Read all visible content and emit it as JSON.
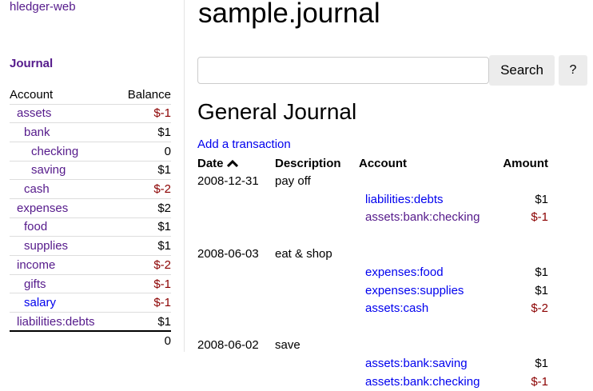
{
  "sidebar": {
    "brand": "hledger-web",
    "journal_link": "Journal",
    "headers": {
      "account": "Account",
      "balance": "Balance"
    },
    "accounts": [
      {
        "name": "assets",
        "balance": "$-1"
      },
      {
        "name": "bank",
        "balance": "$1"
      },
      {
        "name": "checking",
        "balance": "0"
      },
      {
        "name": "saving",
        "balance": "$1"
      },
      {
        "name": "cash",
        "balance": "$-2"
      },
      {
        "name": "expenses",
        "balance": "$2"
      },
      {
        "name": "food",
        "balance": "$1"
      },
      {
        "name": "supplies",
        "balance": "$1"
      },
      {
        "name": "income",
        "balance": "$-2"
      },
      {
        "name": "gifts",
        "balance": "$-1"
      },
      {
        "name": "salary",
        "balance": "$-1"
      },
      {
        "name": "liabilities:debts",
        "balance": "$1"
      }
    ],
    "total": "0"
  },
  "main": {
    "title": "sample.journal",
    "search": {
      "value": "",
      "placeholder": ""
    },
    "search_label": "Search",
    "help_label": "?",
    "heading": "General Journal",
    "add_link": "Add a transaction",
    "columns": {
      "date": "Date",
      "sort_icon": "caret-up-icon",
      "description": "Description",
      "account": "Account",
      "amount": "Amount"
    },
    "transactions": [
      {
        "date": "2008-12-31",
        "description": "pay off",
        "postings": [
          {
            "account": "liabilities:debts",
            "amount": "$1"
          },
          {
            "account": "assets:bank:checking",
            "amount": "$-1"
          }
        ]
      },
      {
        "date": "2008-06-03",
        "description": "eat & shop",
        "postings": [
          {
            "account": "expenses:food",
            "amount": "$1"
          },
          {
            "account": "expenses:supplies",
            "amount": "$1"
          },
          {
            "account": "assets:cash",
            "amount": "$-2"
          }
        ]
      },
      {
        "date": "2008-06-02",
        "description": "save",
        "postings": [
          {
            "account": "assets:bank:saving",
            "amount": "$1"
          },
          {
            "account": "assets:bank:checking",
            "amount": "$-1"
          }
        ]
      }
    ]
  },
  "colors": {
    "link": "#0000ee",
    "visited": "#551a8b",
    "negative": "#8b0000"
  }
}
